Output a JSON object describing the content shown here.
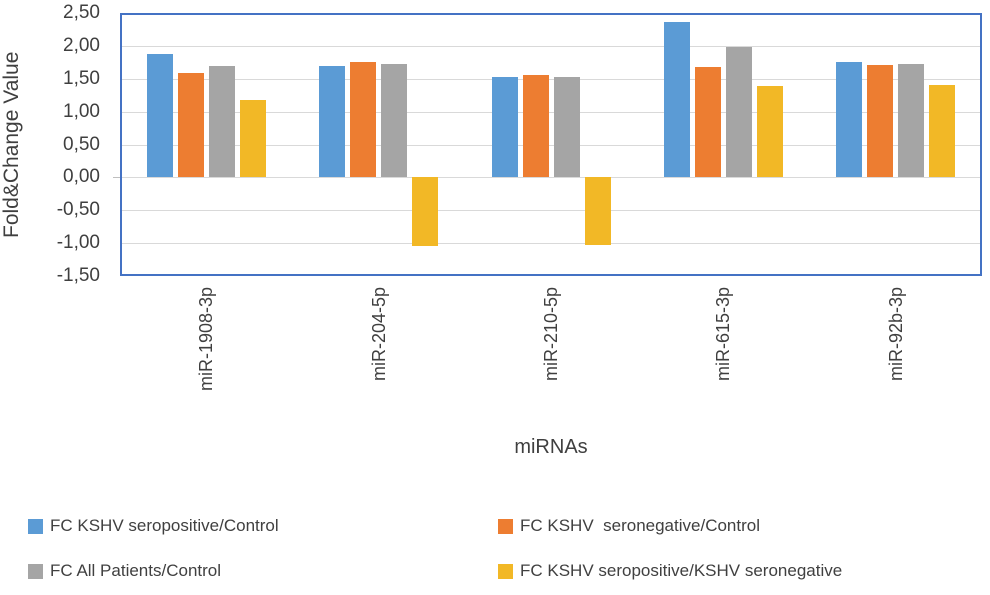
{
  "chart_data": {
    "type": "bar",
    "title": "",
    "xlabel": "miRNAs",
    "ylabel": "Fold&Change Value",
    "categories": [
      "miR-1908-3p",
      "miR-204-5p",
      "miR-210-5p",
      "miR-615-3p",
      "miR-92b-3p"
    ],
    "series": [
      {
        "name": "FC KSHV seropositive/Control",
        "color": "#5B9BD5",
        "values": [
          1.87,
          1.7,
          1.52,
          2.37,
          1.76
        ]
      },
      {
        "name": "FC KSHV  seronegative/Control",
        "color": "#ED7D31",
        "values": [
          1.58,
          1.76,
          1.55,
          1.68,
          1.71
        ]
      },
      {
        "name": "FC All Patients/Control",
        "color": "#A5A5A5",
        "values": [
          1.7,
          1.73,
          1.53,
          1.98,
          1.73
        ]
      },
      {
        "name": "FC KSHV seropositive/KSHV seronegative",
        "color": "#F2B826",
        "values": [
          1.17,
          -1.04,
          -1.03,
          1.39,
          1.4
        ]
      }
    ],
    "ylim": [
      -1.5,
      2.5
    ],
    "ytick_step": 0.5,
    "ytick_labels": [
      "2,50",
      "2,00",
      "1,50",
      "1,00",
      "0,50",
      "0,00",
      "-0,50",
      "-1,00",
      "-1,50"
    ],
    "decimal_separator": ",",
    "grid": true,
    "legend_position": "bottom",
    "colors": {
      "plot_border": "#4472C4",
      "gridline": "#D9D9D9",
      "axis_text": "#3F3F3F"
    }
  }
}
